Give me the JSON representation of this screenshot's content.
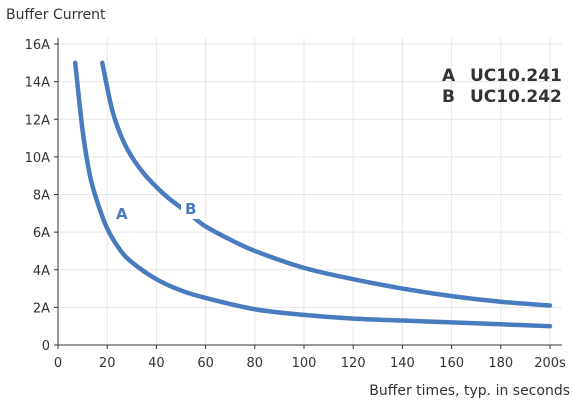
{
  "chart_data": {
    "type": "line",
    "ylabel": "Buffer Current",
    "xlabel": "Buffer times, typ. in seconds",
    "xlim": [
      0,
      200
    ],
    "ylim": [
      0,
      16
    ],
    "x_ticks": [
      0,
      20,
      40,
      60,
      80,
      100,
      120,
      140,
      160,
      180,
      200
    ],
    "x_tick_labels": [
      "0",
      "20",
      "40",
      "60",
      "80",
      "100",
      "120",
      "140",
      "160",
      "180",
      "200s"
    ],
    "y_ticks": [
      0,
      2,
      4,
      6,
      8,
      10,
      12,
      14,
      16
    ],
    "y_tick_labels": [
      "0",
      "2A",
      "4A",
      "6A",
      "8A",
      "10A",
      "12A",
      "14A",
      "16A"
    ],
    "grid": true,
    "line_color": "#4a7bbf",
    "legend": [
      {
        "key": "A",
        "label": "UC10.241"
      },
      {
        "key": "B",
        "label": "UC10.242"
      }
    ],
    "legend_position": "top-right",
    "series": [
      {
        "key": "A",
        "x": [
          7,
          10,
          13,
          16,
          20,
          25,
          30,
          40,
          50,
          60,
          80,
          100,
          120,
          140,
          160,
          180,
          200
        ],
        "values": [
          15,
          11.4,
          9,
          7.6,
          6.2,
          5.1,
          4.4,
          3.5,
          2.9,
          2.5,
          1.9,
          1.6,
          1.4,
          1.3,
          1.2,
          1.1,
          1.0
        ]
      },
      {
        "key": "B",
        "x": [
          18,
          22,
          26,
          30,
          35,
          40,
          45,
          50,
          55,
          60,
          70,
          80,
          100,
          120,
          140,
          160,
          180,
          200
        ],
        "values": [
          15,
          12.5,
          11,
          10,
          9.1,
          8.4,
          7.8,
          7.3,
          6.8,
          6.3,
          5.6,
          5.0,
          4.1,
          3.5,
          3.0,
          2.6,
          2.3,
          2.1
        ]
      }
    ]
  }
}
